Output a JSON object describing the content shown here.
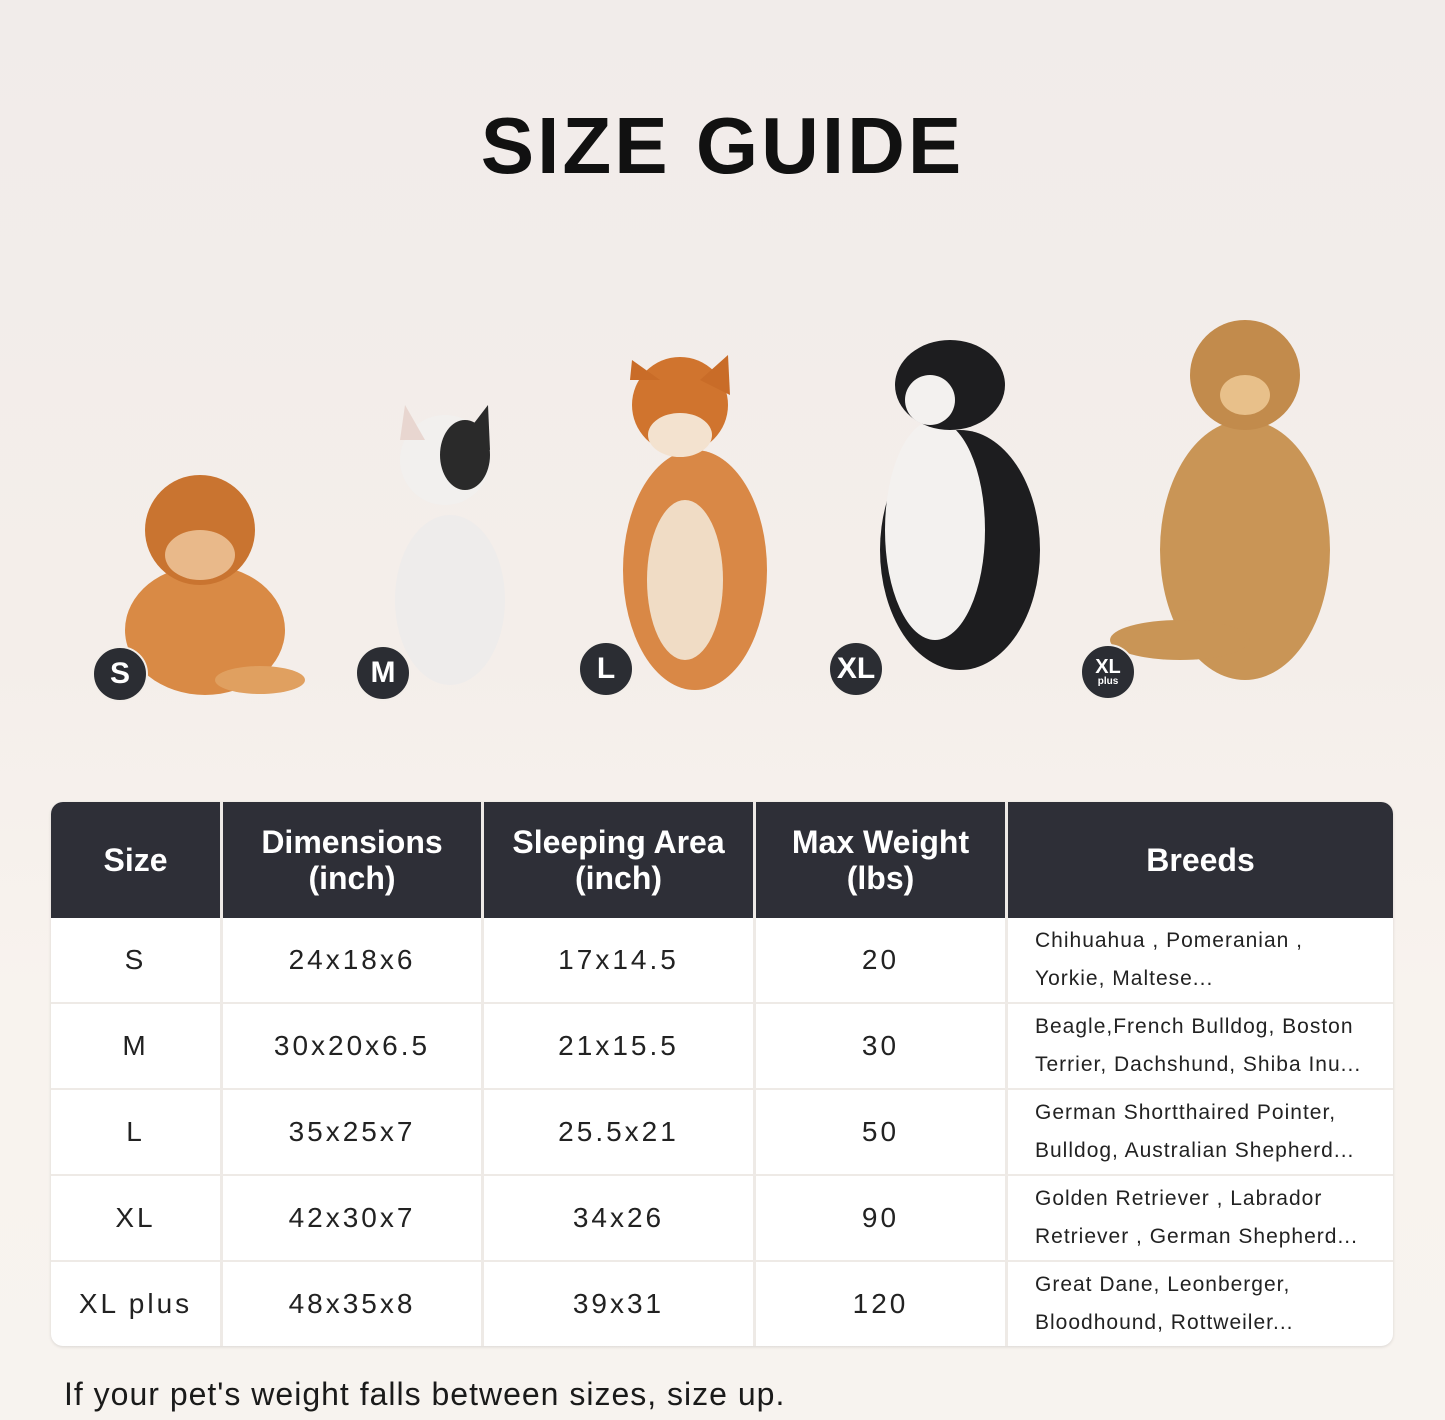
{
  "title": "SIZE GUIDE",
  "badges": [
    {
      "label": "S"
    },
    {
      "label": "M"
    },
    {
      "label": "L"
    },
    {
      "label": "XL"
    },
    {
      "label": "XL",
      "sub": "plus"
    }
  ],
  "table": {
    "headers": [
      {
        "line1": "Size",
        "line2": ""
      },
      {
        "line1": "Dimensions",
        "line2": "(inch)"
      },
      {
        "line1": "Sleeping Area",
        "line2": "(inch)"
      },
      {
        "line1": "Max Weight",
        "line2": "(lbs)"
      },
      {
        "line1": "Breeds",
        "line2": ""
      }
    ],
    "rows": [
      {
        "size": "S",
        "dimensions": "24x18x6",
        "sleeping_area": "17x14.5",
        "max_weight": "20",
        "breeds1": "Chihuahua , Pomeranian ,",
        "breeds2": "Yorkie, Maltese..."
      },
      {
        "size": "M",
        "dimensions": "30x20x6.5",
        "sleeping_area": "21x15.5",
        "max_weight": "30",
        "breeds1": "Beagle,French Bulldog, Boston",
        "breeds2": "Terrier, Dachshund, Shiba Inu..."
      },
      {
        "size": "L",
        "dimensions": "35x25x7",
        "sleeping_area": "25.5x21",
        "max_weight": "50",
        "breeds1": "German Shortthaired Pointer,",
        "breeds2": "Bulldog, Australian Shepherd..."
      },
      {
        "size": "XL",
        "dimensions": "42x30x7",
        "sleeping_area": "34x26",
        "max_weight": "90",
        "breeds1": "Golden Retriever , Labrador",
        "breeds2": "Retriever , German Shepherd..."
      },
      {
        "size": "XL plus",
        "dimensions": "48x35x8",
        "sleeping_area": "39x31",
        "max_weight": "120",
        "breeds1": "Great Dane, Leonberger,",
        "breeds2": "Bloodhound, Rottweiler..."
      }
    ]
  },
  "note": "If your pet's weight falls between sizes, size up.",
  "colors": {
    "header_bg": "#2e2f37",
    "badge_bg": "#2b2d33"
  }
}
